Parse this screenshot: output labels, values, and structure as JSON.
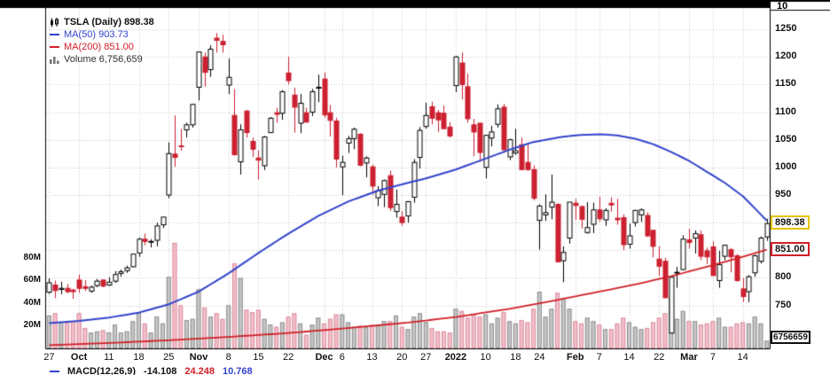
{
  "legend": {
    "title": "TSLA (Daily) 898.38",
    "ma50": "MA(50) 903.73",
    "ma200": "MA(200) 851.00",
    "volume": "Volume 6,756,659"
  },
  "top_axis": {
    "label": "10"
  },
  "macd": {
    "label": "MACD(12,26,9)",
    "v1": "-14.108",
    "v2": "24.248",
    "v3": "10.768"
  },
  "colors": {
    "up": "#000000",
    "up_fill": "#ffffff",
    "down": "#cc2030",
    "ma50": "#3344cc",
    "ma200": "#d02028",
    "vol_up": "#c6c6c6",
    "vol_up_edge": "#8f8f8f",
    "vol_down": "#f2c0ca",
    "vol_down_edge": "#da8fa0",
    "grid": "#c9c9c9",
    "last_box_border": "#e3c400"
  },
  "chart_data": {
    "type": "candlestick",
    "symbol": "TSLA",
    "timeframe": "Daily",
    "title": "TSLA (Daily)",
    "last_close": 898.38,
    "last_volume": 6756659,
    "overlays": [
      {
        "name": "MA(50)",
        "last_value": 903.73
      },
      {
        "name": "MA(200)",
        "last_value": 851.0
      }
    ],
    "price_axis": {
      "min": 750,
      "max": 1250,
      "step": 50
    },
    "price_tick_labels": [
      1250,
      1200,
      1150,
      1100,
      1050,
      1000,
      950,
      800,
      750
    ],
    "volume_ticks": [
      {
        "label": "80M",
        "value": 80
      },
      {
        "label": "60M",
        "value": 60
      },
      {
        "label": "40M",
        "value": 40
      },
      {
        "label": "20M",
        "value": 20
      }
    ],
    "axis_callouts": {
      "last_price": "898.38",
      "ma200": "851.00",
      "volume": "6756659"
    },
    "x_ticks": [
      {
        "i": 0,
        "label": "27"
      },
      {
        "i": 5,
        "label": "Oct",
        "bold": true
      },
      {
        "i": 10,
        "label": "11"
      },
      {
        "i": 15,
        "label": "18"
      },
      {
        "i": 20,
        "label": "25"
      },
      {
        "i": 25,
        "label": "Nov",
        "bold": true
      },
      {
        "i": 30,
        "label": "8"
      },
      {
        "i": 35,
        "label": "15"
      },
      {
        "i": 40,
        "label": "22"
      },
      {
        "i": 46,
        "label": "Dec",
        "bold": true
      },
      {
        "i": 49,
        "label": "6"
      },
      {
        "i": 54,
        "label": "13"
      },
      {
        "i": 59,
        "label": "20"
      },
      {
        "i": 63,
        "label": "27"
      },
      {
        "i": 68,
        "label": "2022",
        "bold": true
      },
      {
        "i": 73,
        "label": "10"
      },
      {
        "i": 78,
        "label": "18"
      },
      {
        "i": 82,
        "label": "24"
      },
      {
        "i": 88,
        "label": "Feb",
        "bold": true
      },
      {
        "i": 92,
        "label": "7"
      },
      {
        "i": 97,
        "label": "14"
      },
      {
        "i": 102,
        "label": "22"
      },
      {
        "i": 107,
        "label": "Mar",
        "bold": true
      },
      {
        "i": 111,
        "label": "7"
      },
      {
        "i": 116,
        "label": "14"
      }
    ],
    "columns": [
      "date",
      "open",
      "high",
      "low",
      "close",
      "volume_millions"
    ],
    "candles": [
      [
        "09-27",
        774,
        799,
        771,
        791,
        29
      ],
      [
        "09-28",
        787,
        795,
        763,
        777,
        31
      ],
      [
        "09-29",
        779,
        793,
        770,
        781,
        23
      ],
      [
        "09-30",
        781,
        789,
        772,
        775,
        23
      ],
      [
        "10-01",
        778,
        780,
        762,
        775,
        24
      ],
      [
        "10-04",
        796,
        806,
        773,
        781,
        31
      ],
      [
        "10-05",
        784,
        796,
        776,
        781,
        18
      ],
      [
        "10-06",
        776,
        786,
        773,
        783,
        14
      ],
      [
        "10-07",
        786,
        798,
        783,
        794,
        15
      ],
      [
        "10-08",
        796,
        797,
        783,
        785,
        16
      ],
      [
        "10-11",
        787,
        801,
        785,
        792,
        14
      ],
      [
        "10-12",
        794,
        812,
        791,
        806,
        21
      ],
      [
        "10-13",
        808,
        815,
        802,
        811,
        14
      ],
      [
        "10-14",
        813,
        822,
        809,
        818,
        15
      ],
      [
        "10-15",
        820,
        843,
        819,
        843,
        24
      ],
      [
        "10-18",
        845,
        873,
        838,
        870,
        31
      ],
      [
        "10-19",
        870,
        880,
        859,
        866,
        22
      ],
      [
        "10-20",
        866,
        870,
        855,
        866,
        14
      ],
      [
        "10-21",
        868,
        900,
        857,
        894,
        28
      ],
      [
        "10-22",
        896,
        910,
        890,
        910,
        22
      ],
      [
        "10-25",
        950,
        1045,
        944,
        1025,
        63
      ],
      [
        "10-26",
        1024,
        1094,
        1001,
        1018,
        93
      ],
      [
        "10-27",
        1039,
        1070,
        1030,
        1038,
        38
      ],
      [
        "10-28",
        1068,
        1081,
        1054,
        1077,
        25
      ],
      [
        "10-29",
        1077,
        1115,
        1072,
        1114,
        26
      ],
      [
        "11-01",
        1145,
        1209,
        1121,
        1209,
        52
      ],
      [
        "11-02",
        1200,
        1208,
        1146,
        1172,
        36
      ],
      [
        "11-03",
        1177,
        1221,
        1164,
        1214,
        28
      ],
      [
        "11-04",
        1234,
        1243,
        1208,
        1230,
        31
      ],
      [
        "11-05",
        1228,
        1240,
        1208,
        1222,
        26
      ],
      [
        "11-08",
        1149,
        1197,
        1133,
        1163,
        38
      ],
      [
        "11-09",
        1094,
        1142,
        1021,
        1023,
        75
      ],
      [
        "11-10",
        1010,
        1078,
        987,
        1068,
        62
      ],
      [
        "11-11",
        1102,
        1104,
        1054,
        1063,
        34
      ],
      [
        "11-12",
        1047,
        1054,
        1019,
        1033,
        32
      ],
      [
        "11-15",
        1017,
        1031,
        978,
        1013,
        34
      ],
      [
        "11-16",
        1003,
        1057,
        995,
        1055,
        26
      ],
      [
        "11-17",
        1063,
        1091,
        1062,
        1089,
        21
      ],
      [
        "11-18",
        1099,
        1108,
        1081,
        1096,
        19
      ],
      [
        "11-19",
        1098,
        1140,
        1086,
        1137,
        23
      ],
      [
        "11-22",
        1171,
        1201,
        1150,
        1157,
        28
      ],
      [
        "11-23",
        1131,
        1144,
        1063,
        1109,
        31
      ],
      [
        "11-24",
        1080,
        1133,
        1062,
        1116,
        22
      ],
      [
        "11-26",
        1099,
        1108,
        1081,
        1082,
        12
      ],
      [
        "11-29",
        1100,
        1142,
        1093,
        1137,
        21
      ],
      [
        "11-30",
        1144,
        1168,
        1118,
        1145,
        27
      ],
      [
        "12-01",
        1160,
        1172,
        1090,
        1095,
        22
      ],
      [
        "12-02",
        1099,
        1113,
        1056,
        1085,
        26
      ],
      [
        "12-03",
        1084,
        1090,
        1000,
        1015,
        30
      ],
      [
        "12-06",
        1001,
        1021,
        950,
        1009,
        30
      ],
      [
        "12-07",
        1044,
        1057,
        1026,
        1052,
        23
      ],
      [
        "12-08",
        1052,
        1072,
        1033,
        1069,
        19
      ],
      [
        "12-09",
        1060,
        1062,
        1002,
        1004,
        20
      ],
      [
        "12-10",
        1008,
        1020,
        982,
        1017,
        19
      ],
      [
        "12-13",
        1001,
        1005,
        951,
        966,
        21
      ],
      [
        "12-14",
        945,
        966,
        930,
        958,
        21
      ],
      [
        "12-15",
        951,
        978,
        928,
        976,
        24
      ],
      [
        "12-16",
        985,
        994,
        921,
        927,
        24
      ],
      [
        "12-17",
        920,
        960,
        909,
        933,
        29
      ],
      [
        "12-20",
        910,
        921,
        894,
        900,
        19
      ],
      [
        "12-21",
        912,
        939,
        900,
        938,
        17
      ],
      [
        "12-22",
        946,
        1015,
        936,
        1009,
        28
      ],
      [
        "12-23",
        1018,
        1073,
        998,
        1067,
        31
      ],
      [
        "12-27",
        1074,
        1117,
        1070,
        1094,
        23
      ],
      [
        "12-28",
        1110,
        1119,
        1078,
        1089,
        18
      ],
      [
        "12-29",
        1099,
        1104,
        1064,
        1086,
        15
      ],
      [
        "12-30",
        1098,
        1112,
        1070,
        1070,
        15
      ],
      [
        "12-31",
        1073,
        1082,
        1054,
        1057,
        14
      ],
      [
        "01-03",
        1148,
        1202,
        1136,
        1200,
        35
      ],
      [
        "01-04",
        1189,
        1208,
        1123,
        1150,
        33
      ],
      [
        "01-05",
        1146,
        1170,
        1081,
        1088,
        27
      ],
      [
        "01-06",
        1077,
        1088,
        1020,
        1064,
        30
      ],
      [
        "01-07",
        1080,
        1080,
        1010,
        1027,
        28
      ],
      [
        "01-10",
        1000,
        1059,
        980,
        1058,
        30
      ],
      [
        "01-11",
        1053,
        1075,
        1038,
        1064,
        22
      ],
      [
        "01-12",
        1078,
        1114,
        1072,
        1106,
        27
      ],
      [
        "01-13",
        1109,
        1115,
        1026,
        1032,
        32
      ],
      [
        "01-14",
        1019,
        1052,
        1013,
        1050,
        24
      ],
      [
        "01-18",
        1026,
        1070,
        1023,
        1030,
        22
      ],
      [
        "01-19",
        1041,
        1054,
        995,
        996,
        25
      ],
      [
        "01-20",
        1009,
        1041,
        994,
        996,
        23
      ],
      [
        "01-21",
        996,
        1004,
        940,
        944,
        35
      ],
      [
        "01-24",
        904,
        933,
        851,
        930,
        50
      ],
      [
        "01-25",
        914,
        951,
        903,
        918,
        28
      ],
      [
        "01-26",
        928,
        987,
        906,
        937,
        35
      ],
      [
        "01-27",
        933,
        935,
        829,
        829,
        49
      ],
      [
        "01-28",
        831,
        857,
        792,
        846,
        44
      ],
      [
        "01-31",
        872,
        937,
        862,
        937,
        35
      ],
      [
        "02-01",
        935,
        943,
        905,
        931,
        24
      ],
      [
        "02-02",
        929,
        931,
        889,
        906,
        22
      ],
      [
        "02-03",
        882,
        937,
        880,
        891,
        27
      ],
      [
        "02-04",
        897,
        936,
        881,
        923,
        24
      ],
      [
        "02-07",
        923,
        947,
        902,
        907,
        21
      ],
      [
        "02-08",
        905,
        926,
        894,
        922,
        17
      ],
      [
        "02-09",
        935,
        946,
        920,
        932,
        17
      ],
      [
        "02-10",
        908,
        943,
        896,
        905,
        22
      ],
      [
        "02-11",
        909,
        915,
        850,
        860,
        27
      ],
      [
        "02-14",
        861,
        898,
        853,
        876,
        23
      ],
      [
        "02-15",
        900,
        923,
        893,
        922,
        19
      ],
      [
        "02-16",
        914,
        926,
        901,
        923,
        17
      ],
      [
        "02-17",
        913,
        919,
        874,
        876,
        18
      ],
      [
        "02-18",
        886,
        887,
        837,
        857,
        23
      ],
      [
        "02-22",
        834,
        857,
        803,
        821,
        27
      ],
      [
        "02-23",
        830,
        836,
        763,
        764,
        31
      ],
      [
        "02-24",
        700,
        802,
        700,
        801,
        45
      ],
      [
        "02-25",
        809,
        820,
        782,
        810,
        26
      ],
      [
        "02-28",
        815,
        877,
        814,
        870,
        33
      ],
      [
        "03-01",
        869,
        889,
        853,
        864,
        24
      ],
      [
        "03-02",
        872,
        886,
        844,
        880,
        24
      ],
      [
        "03-03",
        878,
        886,
        832,
        839,
        21
      ],
      [
        "03-04",
        849,
        855,
        825,
        838,
        22
      ],
      [
        "03-07",
        856,
        866,
        804,
        804,
        24
      ],
      [
        "03-08",
        795,
        849,
        782,
        824,
        27
      ],
      [
        "03-09",
        839,
        860,
        832,
        859,
        19
      ],
      [
        "03-10",
        851,
        854,
        810,
        838,
        19
      ],
      [
        "03-11",
        840,
        843,
        793,
        795,
        22
      ],
      [
        "03-14",
        780,
        800,
        756,
        766,
        23
      ],
      [
        "03-15",
        775,
        805,
        756,
        802,
        22
      ],
      [
        "03-16",
        809,
        842,
        802,
        840,
        28
      ],
      [
        "03-17",
        830,
        875,
        826,
        872,
        22
      ],
      [
        "03-18",
        874,
        907,
        867,
        898.38,
        6.76
      ]
    ],
    "ma50_points": [
      [
        0,
        718
      ],
      [
        5,
        722
      ],
      [
        10,
        728
      ],
      [
        15,
        737
      ],
      [
        20,
        752
      ],
      [
        25,
        775
      ],
      [
        30,
        808
      ],
      [
        35,
        845
      ],
      [
        40,
        880
      ],
      [
        45,
        912
      ],
      [
        50,
        938
      ],
      [
        55,
        958
      ],
      [
        60,
        972
      ],
      [
        63,
        980
      ],
      [
        68,
        996
      ],
      [
        72,
        1012
      ],
      [
        77,
        1032
      ],
      [
        81,
        1046
      ],
      [
        85,
        1054
      ],
      [
        88,
        1058
      ],
      [
        92,
        1060
      ],
      [
        95,
        1058
      ],
      [
        98,
        1052
      ],
      [
        101,
        1042
      ],
      [
        104,
        1028
      ],
      [
        107,
        1012
      ],
      [
        110,
        992
      ],
      [
        113,
        972
      ],
      [
        116,
        948
      ],
      [
        118,
        926
      ],
      [
        120,
        903.73
      ]
    ],
    "ma200_points": [
      [
        0,
        678
      ],
      [
        10,
        682
      ],
      [
        20,
        687
      ],
      [
        30,
        693
      ],
      [
        40,
        700
      ],
      [
        50,
        709
      ],
      [
        60,
        719
      ],
      [
        68,
        729
      ],
      [
        77,
        744
      ],
      [
        85,
        760
      ],
      [
        92,
        775
      ],
      [
        98,
        788
      ],
      [
        104,
        803
      ],
      [
        110,
        820
      ],
      [
        115,
        835
      ],
      [
        120,
        851
      ]
    ]
  }
}
